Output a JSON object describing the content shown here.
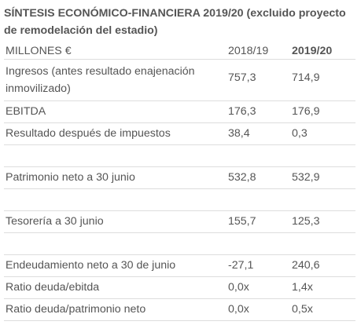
{
  "title": "SÍNTESIS ECONÓMICO-FINANCIERA 2019/20 (excluido proyecto de remodelación del estadio)",
  "table": {
    "header": {
      "label": "MILLONES €",
      "y1": "2018/19",
      "y2": "2019/20"
    },
    "rows": [
      {
        "label": "Ingresos (antes resultado enajenación inmovilizado)",
        "y1": "757,3",
        "y2": "714,9"
      },
      {
        "label": "EBITDA",
        "y1": "176,3",
        "y2": "176,9"
      },
      {
        "label": "Resultado después de impuestos",
        "y1": "38,4",
        "y2": "0,3"
      },
      {
        "label": "Patrimonio neto a 30 junio",
        "y1": "532,8",
        "y2": "532,9"
      },
      {
        "label": "Tesorería a 30 junio",
        "y1": "155,7",
        "y2": "125,3"
      },
      {
        "label": "Endeudamiento neto a 30 de junio",
        "y1": "-27,1",
        "y2": "240,6"
      },
      {
        "label": "Ratio deuda/ebitda",
        "y1": "0,0x",
        "y2": "1,4x"
      },
      {
        "label": "Ratio deuda/patrimonio neto",
        "y1": "0,0x",
        "y2": "0,5x"
      }
    ]
  }
}
